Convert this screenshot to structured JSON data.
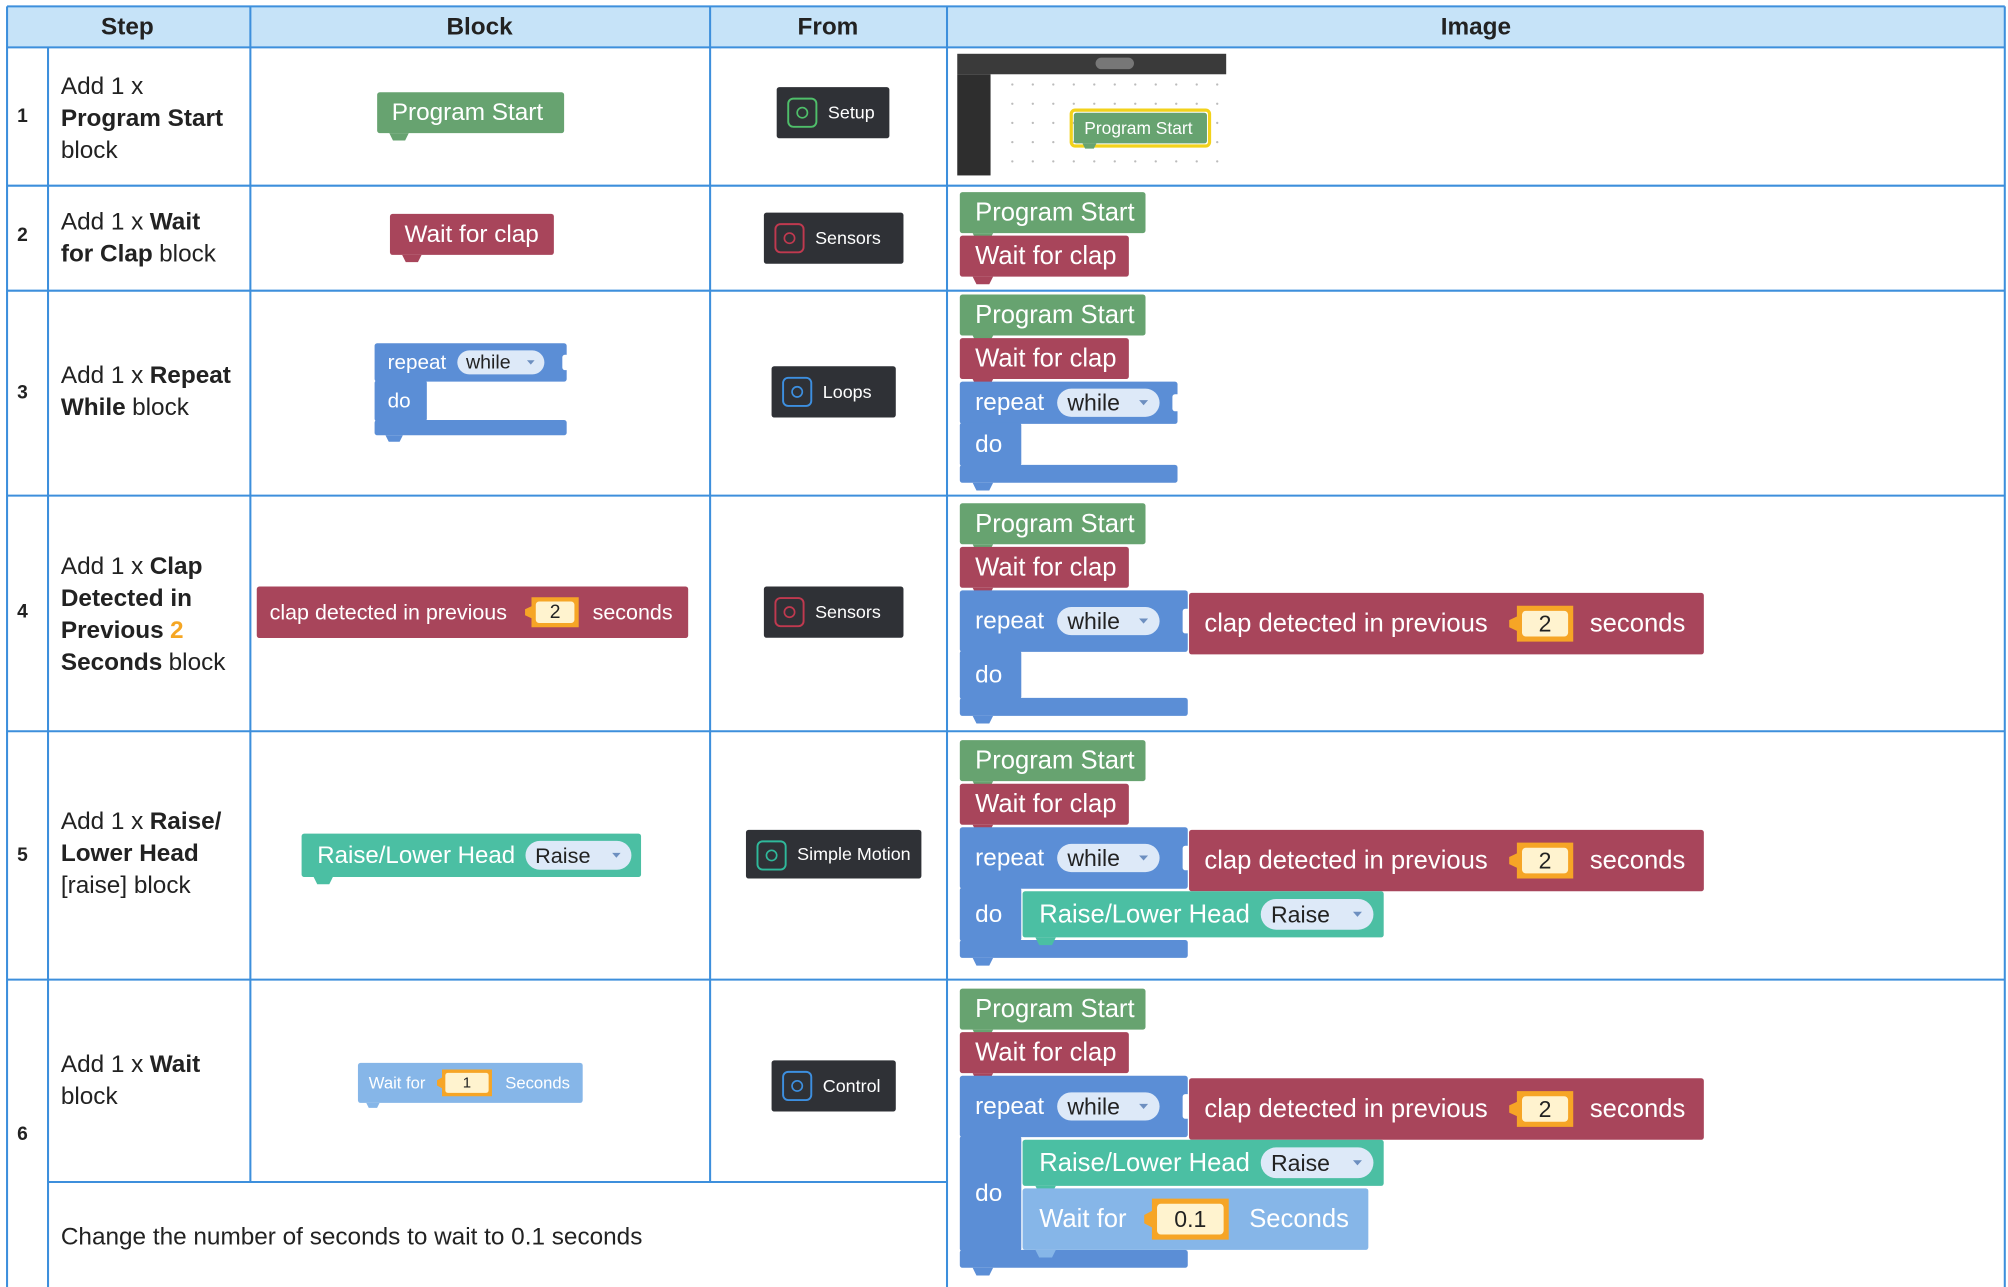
{
  "header": {
    "step": "Step",
    "block": "Block",
    "from": "From",
    "image": "Image"
  },
  "labels": {
    "program_start": "Program Start",
    "wait_for_clap": "Wait for clap",
    "repeat": "repeat",
    "while": "while",
    "do": "do",
    "clap_detected": "clap detected in previous",
    "clap_value": "2",
    "seconds": "seconds",
    "raise_lower_head": "Raise/Lower Head",
    "raise": "Raise",
    "wait_for": "Wait for",
    "wait_value": "1",
    "wait_seconds": "Seconds",
    "wait_value_changed": "0.1"
  },
  "rows": [
    {
      "step": "1",
      "from": "Setup",
      "description": [
        [
          {
            "text": "Add 1 x",
            "style": "normal"
          }
        ],
        [
          {
            "text": "Program Start",
            "style": "bold"
          }
        ],
        [
          {
            "text": "block",
            "style": "normal"
          }
        ]
      ]
    },
    {
      "step": "2",
      "from": "Sensors",
      "description": [
        [
          {
            "text": "Add 1 x",
            "style": "normal"
          },
          {
            "text": "Wait",
            "style": "bold"
          }
        ],
        [
          {
            "text": "for Clap",
            "style": "bold"
          },
          {
            "text": "block",
            "style": "normal"
          }
        ]
      ]
    },
    {
      "step": "3",
      "from": "Loops",
      "description": [
        [
          {
            "text": "Add 1 x",
            "style": "normal"
          },
          {
            "text": "Repeat",
            "style": "bold"
          }
        ],
        [
          {
            "text": "While",
            "style": "bold"
          },
          {
            "text": "block",
            "style": "normal"
          }
        ]
      ]
    },
    {
      "step": "4",
      "from": "Sensors",
      "description": [
        [
          {
            "text": "Add 1 x",
            "style": "normal"
          },
          {
            "text": "Clap",
            "style": "bold"
          }
        ],
        [
          {
            "text": "Detected in",
            "style": "bold"
          }
        ],
        [
          {
            "text": "Previous",
            "style": "bold"
          },
          {
            "text": "2",
            "style": "accent"
          }
        ],
        [
          {
            "text": "Seconds",
            "style": "bold"
          },
          {
            "text": "block",
            "style": "normal"
          }
        ]
      ]
    },
    {
      "step": "5",
      "from": "Simple Motion",
      "description": [
        [
          {
            "text": "Add 1 x",
            "style": "normal"
          },
          {
            "text": "Raise/",
            "style": "bold"
          }
        ],
        [
          {
            "text": "Lower Head",
            "style": "bold"
          }
        ],
        [
          {
            "text": "[raise] block",
            "style": "normal"
          }
        ]
      ]
    },
    {
      "step": "6",
      "from": "Control",
      "description": [
        [
          {
            "text": "Add 1 x",
            "style": "normal"
          },
          {
            "text": "Wait",
            "style": "bold"
          }
        ],
        [
          {
            "text": "block",
            "style": "normal"
          }
        ]
      ]
    }
  ],
  "note": "Change the number of seconds to wait to 0.1 seconds"
}
